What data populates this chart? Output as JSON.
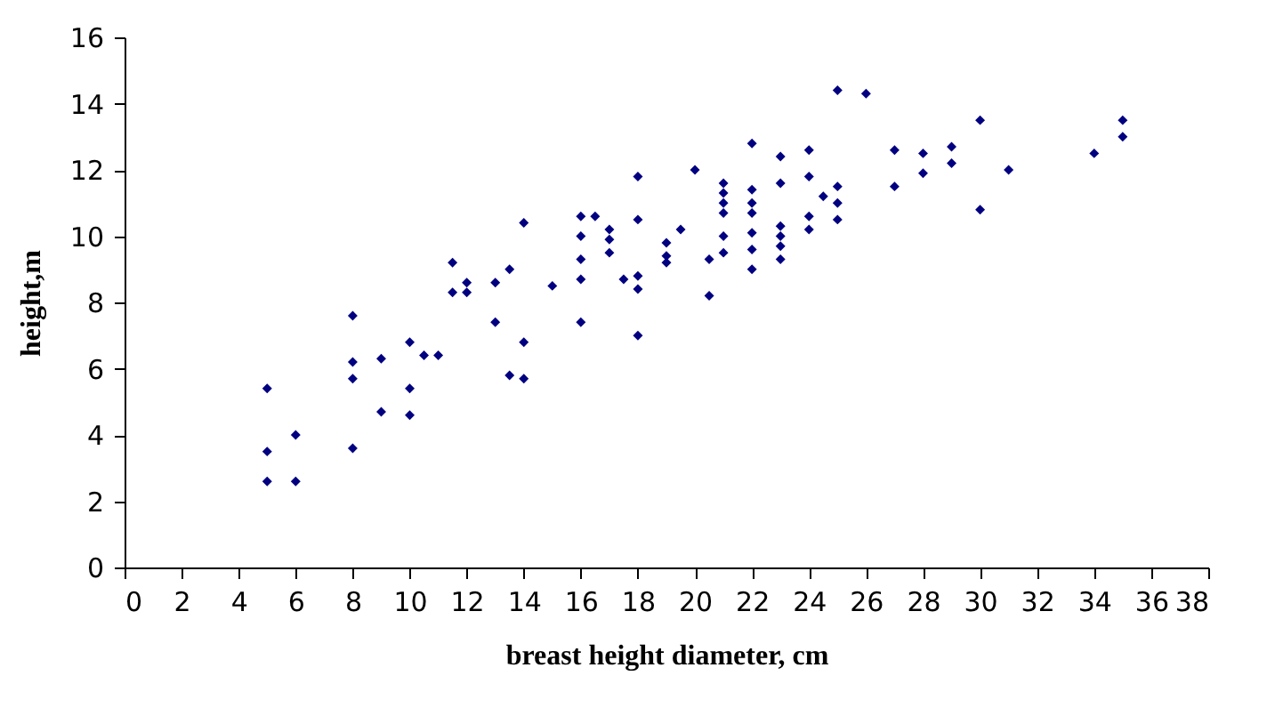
{
  "chart_data": {
    "type": "scatter",
    "xlabel": "breast height diameter, cm",
    "ylabel": "height,m",
    "xlim": [
      0,
      38
    ],
    "xticks": [
      0,
      2,
      4,
      6,
      8,
      10,
      12,
      14,
      16,
      18,
      20,
      22,
      24,
      26,
      28,
      30,
      32,
      34,
      36,
      38
    ],
    "ylim": [
      0,
      16
    ],
    "yticks": [
      0,
      2,
      4,
      6,
      8,
      10,
      12,
      14,
      16
    ],
    "grid": false,
    "marker": "diamond",
    "series": [
      {
        "color": "#000080",
        "x": [
          5,
          5,
          5,
          6,
          6,
          8,
          8,
          8,
          8,
          9,
          9,
          10,
          10,
          10,
          10.5,
          11,
          11.5,
          11.5,
          12,
          12,
          13,
          13,
          13.5,
          13.5,
          14,
          14,
          14,
          15,
          16,
          16,
          16,
          16,
          16,
          16.5,
          17,
          17,
          17,
          17.5,
          18,
          18,
          18,
          18,
          18,
          19,
          19,
          19,
          19.5,
          20,
          20.5,
          20.5,
          21,
          21,
          21,
          21,
          21,
          21,
          22,
          22,
          22,
          22,
          22,
          22,
          22,
          23,
          23,
          23,
          23,
          23,
          23,
          24,
          24,
          24,
          24,
          24.5,
          25,
          25,
          25,
          25,
          26,
          27,
          27,
          28,
          28,
          29,
          29,
          30,
          30,
          31,
          34,
          35,
          35
        ],
        "values": [
          5.4,
          3.5,
          2.6,
          4.0,
          2.6,
          7.6,
          6.2,
          5.7,
          3.6,
          6.3,
          4.7,
          6.8,
          5.4,
          4.6,
          6.4,
          6.4,
          9.2,
          8.3,
          8.6,
          8.3,
          8.6,
          7.4,
          9.0,
          5.8,
          10.4,
          6.8,
          5.7,
          8.5,
          10.6,
          10.0,
          9.3,
          8.7,
          7.4,
          10.6,
          10.2,
          9.9,
          9.5,
          8.7,
          11.8,
          10.5,
          8.8,
          8.4,
          7.0,
          9.8,
          9.4,
          9.2,
          10.2,
          12.0,
          9.3,
          8.2,
          11.6,
          11.3,
          11.0,
          10.7,
          10.0,
          9.5,
          12.8,
          11.4,
          11.0,
          10.7,
          10.1,
          9.6,
          9.0,
          12.4,
          11.6,
          10.3,
          10.0,
          9.7,
          9.3,
          12.6,
          11.8,
          10.6,
          10.2,
          11.2,
          14.4,
          11.5,
          11.0,
          10.5,
          14.3,
          12.6,
          11.5,
          12.5,
          11.9,
          12.7,
          12.2,
          13.5,
          10.8,
          12.0,
          12.5,
          13.5,
          13.0
        ]
      }
    ]
  }
}
